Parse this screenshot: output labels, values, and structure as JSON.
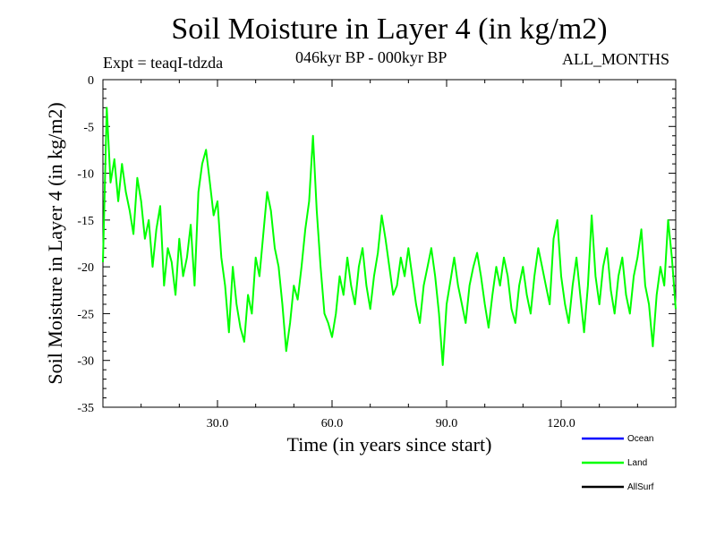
{
  "header": {
    "title": "Soil Moisture in Layer 4 (in kg/m2)",
    "experiment": "Expt = teaqI-tdzda",
    "period": "046kyr BP - 000kyr BP",
    "months": "ALL_MONTHS"
  },
  "chart_data": {
    "type": "line",
    "title": "Soil Moisture in Layer 4 (in kg/m2)",
    "xlabel": "Time (in years since start)",
    "ylabel": "Soil Moisture in Layer 4 (in kg/m2)",
    "xlim": [
      0,
      150
    ],
    "ylim": [
      -35,
      0
    ],
    "xticks": [
      30,
      60,
      90,
      120
    ],
    "xtick_labels": [
      "30.0",
      "60.0",
      "90.0",
      "120.0"
    ],
    "yticks": [
      0,
      -5,
      -10,
      -15,
      -20,
      -25,
      -30,
      -35
    ],
    "ytick_labels": [
      "0",
      "-5",
      "-10",
      "-15",
      "-20",
      "-25",
      "-30",
      "-35"
    ],
    "legend_position": "bottom-right",
    "series": [
      {
        "name": "Ocean",
        "color": "#0000ff",
        "x": [],
        "values": []
      },
      {
        "name": "Land",
        "color": "#00ff00",
        "x": [
          0,
          1,
          2,
          3,
          4,
          5,
          6,
          7,
          8,
          9,
          10,
          11,
          12,
          13,
          14,
          15,
          16,
          17,
          18,
          19,
          20,
          21,
          22,
          23,
          24,
          25,
          26,
          27,
          28,
          29,
          30,
          31,
          32,
          33,
          34,
          35,
          36,
          37,
          38,
          39,
          40,
          41,
          42,
          43,
          44,
          45,
          46,
          47,
          48,
          49,
          50,
          51,
          52,
          53,
          54,
          55,
          56,
          57,
          58,
          59,
          60,
          61,
          62,
          63,
          64,
          65,
          66,
          67,
          68,
          69,
          70,
          71,
          72,
          73,
          74,
          75,
          76,
          77,
          78,
          79,
          80,
          81,
          82,
          83,
          84,
          85,
          86,
          87,
          88,
          89,
          90,
          91,
          92,
          93,
          94,
          95,
          96,
          97,
          98,
          99,
          100,
          101,
          102,
          103,
          104,
          105,
          106,
          107,
          108,
          109,
          110,
          111,
          112,
          113,
          114,
          115,
          116,
          117,
          118,
          119,
          120,
          121,
          122,
          123,
          124,
          125,
          126,
          127,
          128,
          129,
          130,
          131,
          132,
          133,
          134,
          135,
          136,
          137,
          138,
          139,
          140,
          141,
          142,
          143,
          144,
          145,
          146,
          147,
          148,
          149,
          150
        ],
        "values": [
          -19.5,
          -3.0,
          -11.0,
          -8.5,
          -13.0,
          -9.0,
          -12.0,
          -14.0,
          -16.5,
          -10.5,
          -13.0,
          -17.0,
          -15.0,
          -20.0,
          -16.0,
          -13.5,
          -22.0,
          -18.0,
          -19.5,
          -23.0,
          -17.0,
          -21.0,
          -19.0,
          -15.5,
          -22.0,
          -12.0,
          -9.0,
          -7.5,
          -11.0,
          -14.5,
          -13.0,
          -19.0,
          -22.0,
          -27.0,
          -20.0,
          -24.0,
          -26.5,
          -28.0,
          -23.0,
          -25.0,
          -19.0,
          -21.0,
          -16.5,
          -12.0,
          -14.0,
          -18.0,
          -20.0,
          -24.0,
          -29.0,
          -26.0,
          -22.0,
          -23.5,
          -20.0,
          -16.0,
          -13.0,
          -6.0,
          -14.0,
          -20.0,
          -25.0,
          -26.0,
          -27.5,
          -25.0,
          -21.0,
          -23.0,
          -19.0,
          -22.0,
          -24.0,
          -20.0,
          -18.0,
          -22.0,
          -24.5,
          -21.0,
          -18.5,
          -14.5,
          -17.0,
          -20.0,
          -23.0,
          -22.0,
          -19.0,
          -21.0,
          -18.0,
          -21.0,
          -24.0,
          -26.0,
          -22.0,
          -20.0,
          -18.0,
          -21.0,
          -25.0,
          -30.5,
          -24.0,
          -21.5,
          -19.0,
          -22.0,
          -24.0,
          -26.0,
          -22.0,
          -20.0,
          -18.5,
          -21.0,
          -24.0,
          -26.5,
          -23.0,
          -20.0,
          -22.0,
          -19.0,
          -21.0,
          -24.5,
          -26.0,
          -22.0,
          -20.0,
          -23.0,
          -25.0,
          -21.0,
          -18.0,
          -20.0,
          -22.0,
          -24.0,
          -17.0,
          -15.0,
          -21.0,
          -24.0,
          -26.0,
          -22.0,
          -19.0,
          -23.0,
          -27.0,
          -22.0,
          -14.5,
          -21.0,
          -24.0,
          -20.0,
          -18.0,
          -22.5,
          -25.0,
          -21.0,
          -19.0,
          -23.0,
          -25.0,
          -21.0,
          -19.0,
          -16.0,
          -22.0,
          -24.0,
          -28.5,
          -23.0,
          -20.0,
          -22.0,
          -15.0,
          -19.0,
          -24.5
        ]
      },
      {
        "name": "AllSurf",
        "color": "#000000",
        "x": [],
        "values": []
      }
    ]
  }
}
